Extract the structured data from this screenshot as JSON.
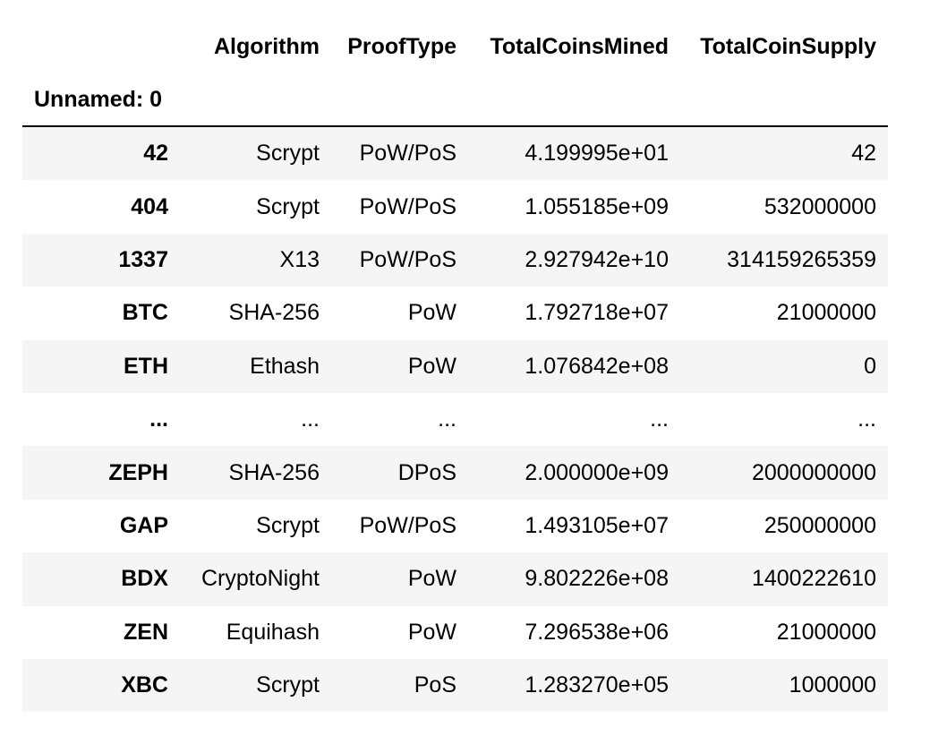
{
  "table": {
    "columns": [
      "Algorithm",
      "ProofType",
      "TotalCoinsMined",
      "TotalCoinSupply"
    ],
    "index_name": "Unnamed: 0",
    "rows": [
      {
        "index": "42",
        "cells": [
          "Scrypt",
          "PoW/PoS",
          "4.199995e+01",
          "42"
        ]
      },
      {
        "index": "404",
        "cells": [
          "Scrypt",
          "PoW/PoS",
          "1.055185e+09",
          "532000000"
        ]
      },
      {
        "index": "1337",
        "cells": [
          "X13",
          "PoW/PoS",
          "2.927942e+10",
          "314159265359"
        ]
      },
      {
        "index": "BTC",
        "cells": [
          "SHA-256",
          "PoW",
          "1.792718e+07",
          "21000000"
        ]
      },
      {
        "index": "ETH",
        "cells": [
          "Ethash",
          "PoW",
          "1.076842e+08",
          "0"
        ]
      },
      {
        "index": "...",
        "cells": [
          "...",
          "...",
          "...",
          "..."
        ]
      },
      {
        "index": "ZEPH",
        "cells": [
          "SHA-256",
          "DPoS",
          "2.000000e+09",
          "2000000000"
        ]
      },
      {
        "index": "GAP",
        "cells": [
          "Scrypt",
          "PoW/PoS",
          "1.493105e+07",
          "250000000"
        ]
      },
      {
        "index": "BDX",
        "cells": [
          "CryptoNight",
          "PoW",
          "9.802226e+08",
          "1400222610"
        ]
      },
      {
        "index": "ZEN",
        "cells": [
          "Equihash",
          "PoW",
          "7.296538e+06",
          "21000000"
        ]
      },
      {
        "index": "XBC",
        "cells": [
          "Scrypt",
          "PoS",
          "1.283270e+05",
          "1000000"
        ]
      }
    ]
  },
  "colors": {
    "row_stripe": "#f5f5f5",
    "header_rule": "#000000"
  }
}
